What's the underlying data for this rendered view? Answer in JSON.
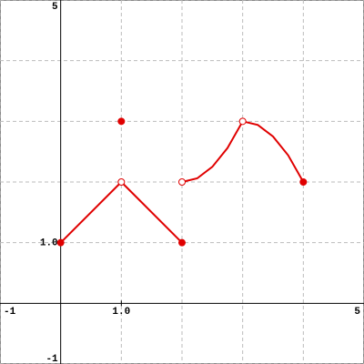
{
  "chart_data": {
    "type": "line",
    "xlim": [
      -1,
      5
    ],
    "ylim": [
      -1,
      5
    ],
    "xticks": [
      -1,
      {
        "value": 1,
        "label": "1.0"
      },
      5
    ],
    "yticks": [
      -1,
      {
        "value": 1,
        "label": "1.0"
      },
      5
    ],
    "grid": true,
    "grid_step": 1,
    "color": "#e00000",
    "segments": [
      {
        "x": [
          0,
          1
        ],
        "y": [
          1,
          2
        ]
      },
      {
        "x": [
          1,
          2
        ],
        "y": [
          2,
          1
        ]
      },
      {
        "x": [
          2,
          2.25,
          2.5,
          2.75,
          3
        ],
        "y": [
          2,
          2.06,
          2.25,
          2.56,
          3
        ]
      },
      {
        "x": [
          3,
          3.25,
          3.5,
          3.75,
          4
        ],
        "y": [
          3,
          2.94,
          2.75,
          2.44,
          2
        ]
      }
    ],
    "points": [
      {
        "x": 0,
        "y": 1,
        "filled": true
      },
      {
        "x": 1,
        "y": 2,
        "filled": false
      },
      {
        "x": 2,
        "y": 1,
        "filled": true
      },
      {
        "x": 1,
        "y": 3,
        "filled": true
      },
      {
        "x": 2,
        "y": 2,
        "filled": false
      },
      {
        "x": 3,
        "y": 3,
        "filled": false
      },
      {
        "x": 4,
        "y": 2,
        "filled": true
      }
    ]
  }
}
